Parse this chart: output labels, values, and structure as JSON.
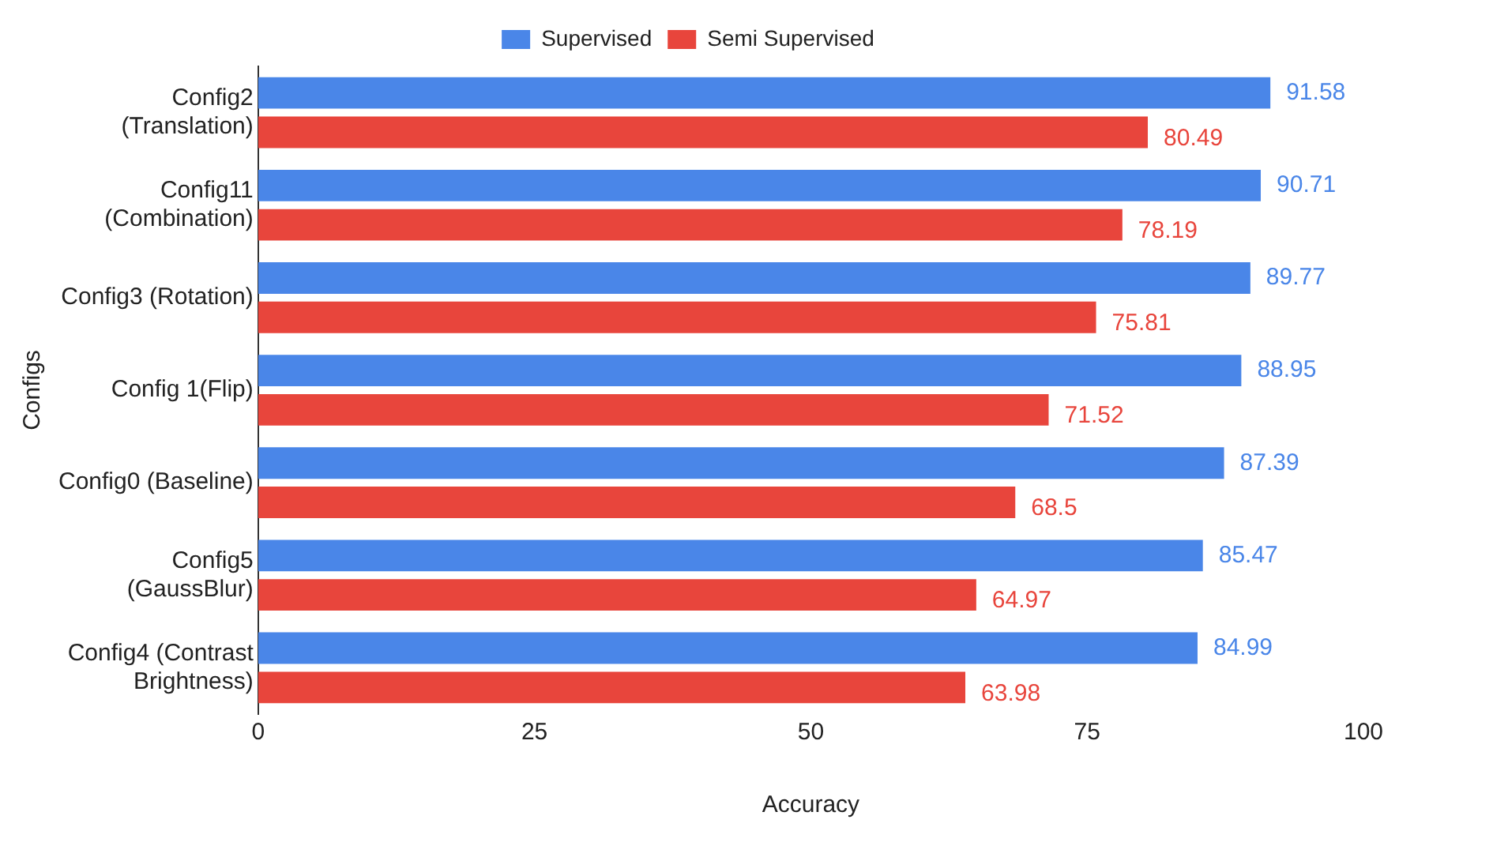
{
  "chart_data": {
    "type": "bar",
    "orientation": "horizontal",
    "xlabel": "Accuracy",
    "ylabel": "Configs",
    "categories": [
      "Config2 (Translation)",
      "Config11 (Combination)",
      "Config3 (Rotation)",
      "Config 1(Flip)",
      "Config0 (Baseline)",
      "Config5 (GaussBlur)",
      "Config4 (Contrast Brightness)"
    ],
    "series": [
      {
        "name": "Supervised",
        "color": "#4a86e8",
        "values": [
          91.58,
          90.71,
          89.77,
          88.95,
          87.39,
          85.47,
          84.99
        ]
      },
      {
        "name": "Semi Supervised",
        "color": "#e8453c",
        "values": [
          80.49,
          78.19,
          75.81,
          71.52,
          68.5,
          64.97,
          63.98
        ]
      }
    ],
    "xlim": [
      0,
      100
    ],
    "xticks": [
      0,
      25,
      50,
      75,
      100
    ],
    "grid": false,
    "legend": "top",
    "data_labels": true
  }
}
